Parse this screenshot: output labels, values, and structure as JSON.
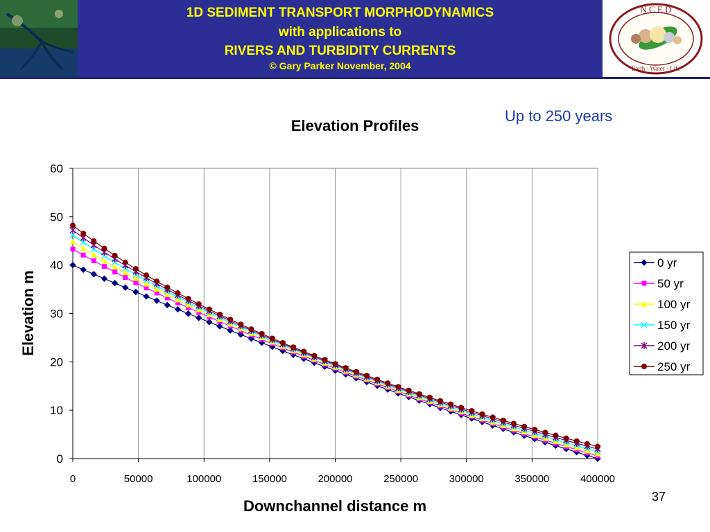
{
  "header": {
    "line1": "1D SEDIMENT TRANSPORT MORPHODYNAMICS",
    "line2": "with applications to",
    "line3": "RIVERS AND TURBIDITY CURRENTS",
    "line4": "© Gary Parker November, 2004",
    "logo_text": "N C E D",
    "logo_tagline": "Earth · Water · Life",
    "band_color": "#2b2f95",
    "text_color": "#ffff00",
    "copyright_color": "#ff6a1a"
  },
  "note": "Up to 250 years",
  "page_number": "37",
  "chart_data": {
    "type": "line",
    "title": "Elevation Profiles",
    "xlabel": "Downchannel distance m",
    "ylabel": "Elevation m",
    "xlim": [
      0,
      400000
    ],
    "ylim": [
      0,
      60
    ],
    "xticks": [
      0,
      50000,
      100000,
      150000,
      200000,
      250000,
      300000,
      350000,
      400000
    ],
    "yticks": [
      0,
      10,
      20,
      30,
      40,
      50,
      60
    ],
    "grid": "vertical",
    "legend_position": "right",
    "x_step": 8000,
    "series": [
      {
        "name": "0 yr",
        "color": "#000080",
        "marker": "diamond",
        "start": 40.0,
        "end": 0.0
      },
      {
        "name": "50 yr",
        "color": "#ff00ff",
        "marker": "square",
        "start": 43.3,
        "end": 0.5
      },
      {
        "name": "100 yr",
        "color": "#ffff00",
        "marker": "triangle",
        "start": 44.8,
        "end": 0.9
      },
      {
        "name": "150 yr",
        "color": "#00ffff",
        "marker": "x",
        "start": 46.2,
        "end": 1.4
      },
      {
        "name": "200 yr",
        "color": "#800080",
        "marker": "star",
        "start": 47.2,
        "end": 1.9
      },
      {
        "name": "250 yr",
        "color": "#800000",
        "marker": "circle",
        "start": 48.2,
        "end": 2.4
      }
    ]
  }
}
